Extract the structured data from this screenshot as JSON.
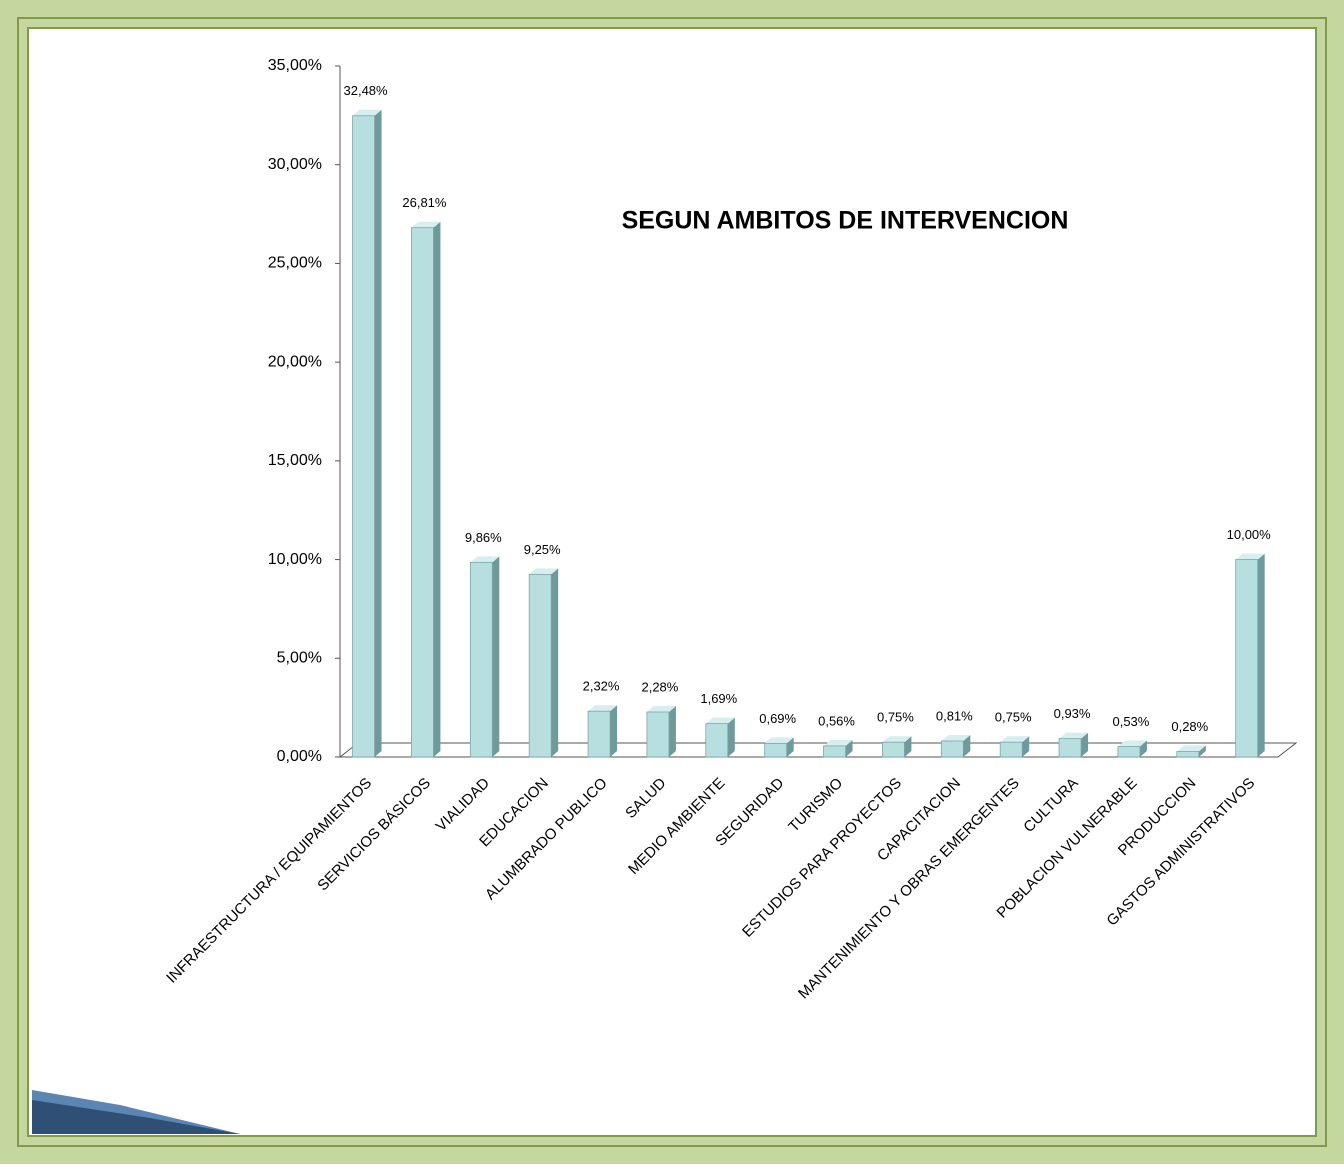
{
  "chart_data": {
    "type": "bar",
    "title": "SEGUN AMBITOS DE INTERVENCION",
    "categories": [
      "INFRAESTRUCTURA / EQUIPAMIENTOS",
      "SERVICIOS BÁSICOS",
      "VIALIDAD",
      "EDUCACION",
      "ALUMBRADO PUBLICO",
      "SALUD",
      "MEDIO AMBIENTE",
      "SEGURIDAD",
      "TURISMO",
      "ESTUDIOS PARA PROYECTOS",
      "CAPACITACION",
      "MANTENIMIENTO Y OBRAS EMERGENTES",
      "CULTURA",
      "POBLACION VULNERABLE",
      "PRODUCCION",
      "GASTOS ADMINISTRATIVOS"
    ],
    "values": [
      32.48,
      26.81,
      9.86,
      9.25,
      2.32,
      2.28,
      1.69,
      0.69,
      0.56,
      0.75,
      0.81,
      0.75,
      0.93,
      0.53,
      0.28,
      10.0
    ],
    "value_labels": [
      "32,48%",
      "26,81%",
      "9,86%",
      "9,25%",
      "2,32%",
      "2,28%",
      "1,69%",
      "0,69%",
      "0,56%",
      "0,75%",
      "0,81%",
      "0,75%",
      "0,93%",
      "0,53%",
      "0,28%",
      "10,00%"
    ],
    "color": "#b7dfe0",
    "ylim": [
      0,
      35
    ],
    "yticks": [
      {
        "value": 0,
        "label": "0,00%"
      },
      {
        "value": 5,
        "label": "5,00%"
      },
      {
        "value": 10,
        "label": "10,00%"
      },
      {
        "value": 15,
        "label": "15,00%"
      },
      {
        "value": 20,
        "label": "20,00%"
      },
      {
        "value": 25,
        "label": "25,00%"
      },
      {
        "value": 30,
        "label": "30,00%"
      },
      {
        "value": 35,
        "label": "35,00%"
      }
    ]
  }
}
